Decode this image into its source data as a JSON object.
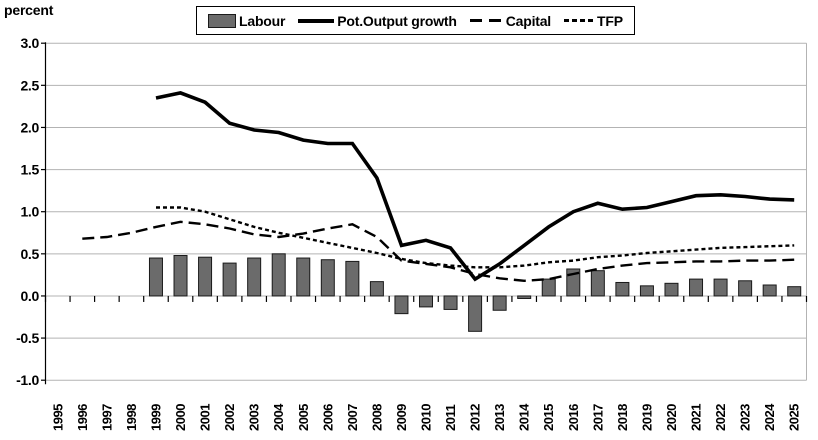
{
  "axis_unit_label": "percent",
  "chart_data": {
    "type": "combo-bar-line",
    "title": "",
    "xlabel": "",
    "ylabel": "percent",
    "ylim": [
      -1.0,
      3.0
    ],
    "y_tick_step": 0.5,
    "y_ticks": [
      3.0,
      2.5,
      2.0,
      1.5,
      1.0,
      0.5,
      0.0,
      -0.5,
      -1.0
    ],
    "grid": "horizontal-gray",
    "legend_position": "top-center",
    "x": [
      1995,
      1996,
      1997,
      1998,
      1999,
      2000,
      2001,
      2002,
      2003,
      2004,
      2005,
      2006,
      2007,
      2008,
      2009,
      2010,
      2011,
      2012,
      2013,
      2014,
      2015,
      2016,
      2017,
      2018,
      2019,
      2020,
      2021,
      2022,
      2023,
      2024,
      2025
    ],
    "series": [
      {
        "name": "Labour",
        "type": "bar",
        "color": "#6b6b6b",
        "values": [
          null,
          null,
          null,
          null,
          0.45,
          0.48,
          0.46,
          0.39,
          0.45,
          0.5,
          0.45,
          0.43,
          0.41,
          0.17,
          -0.21,
          -0.13,
          -0.16,
          -0.42,
          -0.17,
          -0.03,
          0.2,
          0.32,
          0.3,
          0.16,
          0.12,
          0.15,
          0.2,
          0.2,
          0.18,
          0.13,
          0.11
        ]
      },
      {
        "name": "Pot.Output growth",
        "type": "line",
        "style": "solid",
        "color": "#000000",
        "values": [
          null,
          null,
          null,
          null,
          2.35,
          2.41,
          2.3,
          2.05,
          1.97,
          1.94,
          1.85,
          1.81,
          1.81,
          1.4,
          0.6,
          0.66,
          0.57,
          0.2,
          0.38,
          0.6,
          0.82,
          1.0,
          1.1,
          1.03,
          1.05,
          1.12,
          1.19,
          1.2,
          1.18,
          1.15,
          1.14
        ]
      },
      {
        "name": "Capital",
        "type": "line",
        "style": "long-dash",
        "color": "#000000",
        "values": [
          null,
          0.68,
          0.7,
          0.75,
          0.82,
          0.88,
          0.85,
          0.8,
          0.73,
          0.7,
          0.74,
          0.8,
          0.85,
          0.7,
          0.42,
          0.38,
          0.34,
          0.26,
          0.21,
          0.18,
          0.2,
          0.26,
          0.32,
          0.36,
          0.39,
          0.4,
          0.41,
          0.41,
          0.42,
          0.42,
          0.43
        ]
      },
      {
        "name": "TFP",
        "type": "line",
        "style": "short-dash",
        "color": "#000000",
        "values": [
          null,
          null,
          null,
          null,
          1.05,
          1.05,
          1.0,
          0.91,
          0.82,
          0.75,
          0.69,
          0.63,
          0.57,
          0.51,
          0.44,
          0.39,
          0.36,
          0.34,
          0.34,
          0.36,
          0.4,
          0.42,
          0.46,
          0.48,
          0.51,
          0.53,
          0.55,
          0.57,
          0.58,
          0.59,
          0.6
        ]
      }
    ],
    "colors": {
      "bar_fill": "#6b6b6b",
      "bar_border": "#1a1a1a",
      "line": "#000000",
      "gridline": "#b3b3b3",
      "axis": "#000000",
      "text": "#000000"
    }
  }
}
